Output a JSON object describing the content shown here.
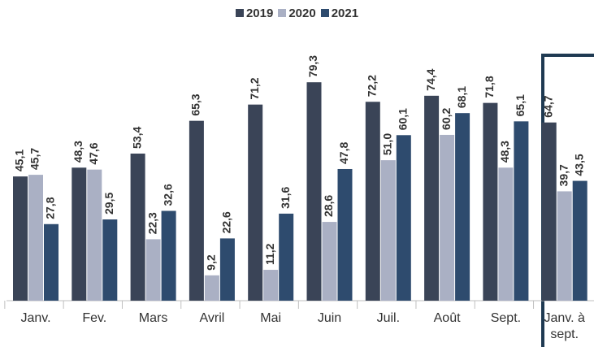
{
  "chart_data": {
    "type": "bar",
    "categories": [
      "Janv.",
      "Fev.",
      "Mars",
      "Avril",
      "Mai",
      "Juin",
      "Juil.",
      "Août",
      "Sept.",
      "Janv. à sept."
    ],
    "series": [
      {
        "name": "2019",
        "color": "#3a4457",
        "values": [
          45.1,
          48.3,
          53.4,
          65.3,
          71.2,
          79.3,
          72.2,
          74.4,
          71.8,
          64.7
        ],
        "value_labels": [
          "45,1",
          "48,3",
          "53,4",
          "65,3",
          "71,2",
          "79,3",
          "72,2",
          "74,4",
          "71,8",
          "64,7"
        ]
      },
      {
        "name": "2020",
        "color": "#aab0c4",
        "values": [
          45.7,
          47.6,
          22.3,
          9.2,
          11.2,
          28.6,
          51.0,
          60.2,
          48.3,
          39.7
        ],
        "value_labels": [
          "45,7",
          "47,6",
          "22,3",
          "9,2",
          "11,2",
          "28,6",
          "51,0",
          "60,2",
          "48,3",
          "39,7"
        ]
      },
      {
        "name": "2021",
        "color": "#2e4b6e",
        "values": [
          27.8,
          29.5,
          32.6,
          22.6,
          31.6,
          47.8,
          60.1,
          68.1,
          65.1,
          43.5
        ],
        "value_labels": [
          "27,8",
          "29,5",
          "32,6",
          "22,6",
          "31,6",
          "47,8",
          "60,1",
          "68,1",
          "65,1",
          "43,5"
        ]
      }
    ],
    "ylim": [
      0,
      95
    ]
  }
}
